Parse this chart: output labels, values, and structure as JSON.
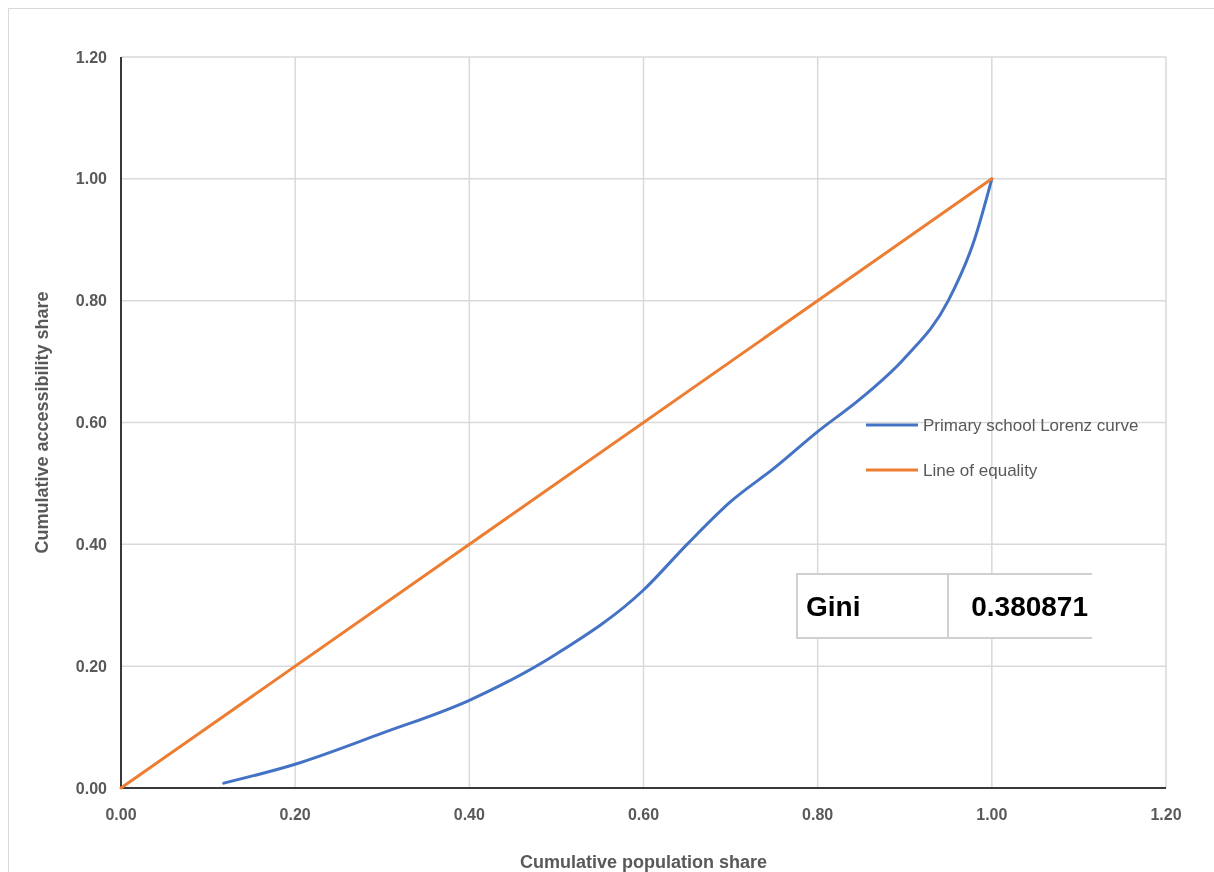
{
  "chart_data": {
    "type": "line",
    "xlabel": "Cumulative population share",
    "ylabel": "Cumulative accessibility share",
    "xlim": [
      0,
      1.2
    ],
    "ylim": [
      0,
      1.2
    ],
    "xticks": [
      {
        "value": 0,
        "label": "0.00"
      },
      {
        "value": 0.2,
        "label": "0.20"
      },
      {
        "value": 0.4,
        "label": "0.40"
      },
      {
        "value": 0.6,
        "label": "0.60"
      },
      {
        "value": 0.8,
        "label": "0.80"
      },
      {
        "value": 1,
        "label": "1.00"
      },
      {
        "value": 1.2,
        "label": "1.20"
      }
    ],
    "yticks": [
      {
        "value": 0,
        "label": "0.00"
      },
      {
        "value": 0.2,
        "label": "0.20"
      },
      {
        "value": 0.4,
        "label": "0.40"
      },
      {
        "value": 0.6,
        "label": "0.60"
      },
      {
        "value": 0.8,
        "label": "0.80"
      },
      {
        "value": 1,
        "label": "1.00"
      },
      {
        "value": 1.2,
        "label": "1.20"
      }
    ],
    "grid": true,
    "legend": "right",
    "marker": "none",
    "line_style": "solid",
    "series": [
      {
        "name": "Primary school Lorenz curve",
        "color": "#4472c4",
        "x": [
          0.118,
          0.2,
          0.3,
          0.4,
          0.5,
          0.6,
          0.65,
          0.7,
          0.75,
          0.8,
          0.85,
          0.9,
          0.95,
          0.98,
          1.0
        ],
        "values": [
          0.008,
          0.039,
          0.09,
          0.144,
          0.22,
          0.325,
          0.4,
          0.47,
          0.525,
          0.585,
          0.64,
          0.706,
          0.8,
          0.9,
          1.0
        ]
      },
      {
        "name": "Line of equality",
        "color": "#ed7d31",
        "x": [
          0,
          1
        ],
        "values": [
          0,
          1
        ]
      }
    ],
    "annotations": [
      "Gini",
      "0.380871"
    ]
  }
}
